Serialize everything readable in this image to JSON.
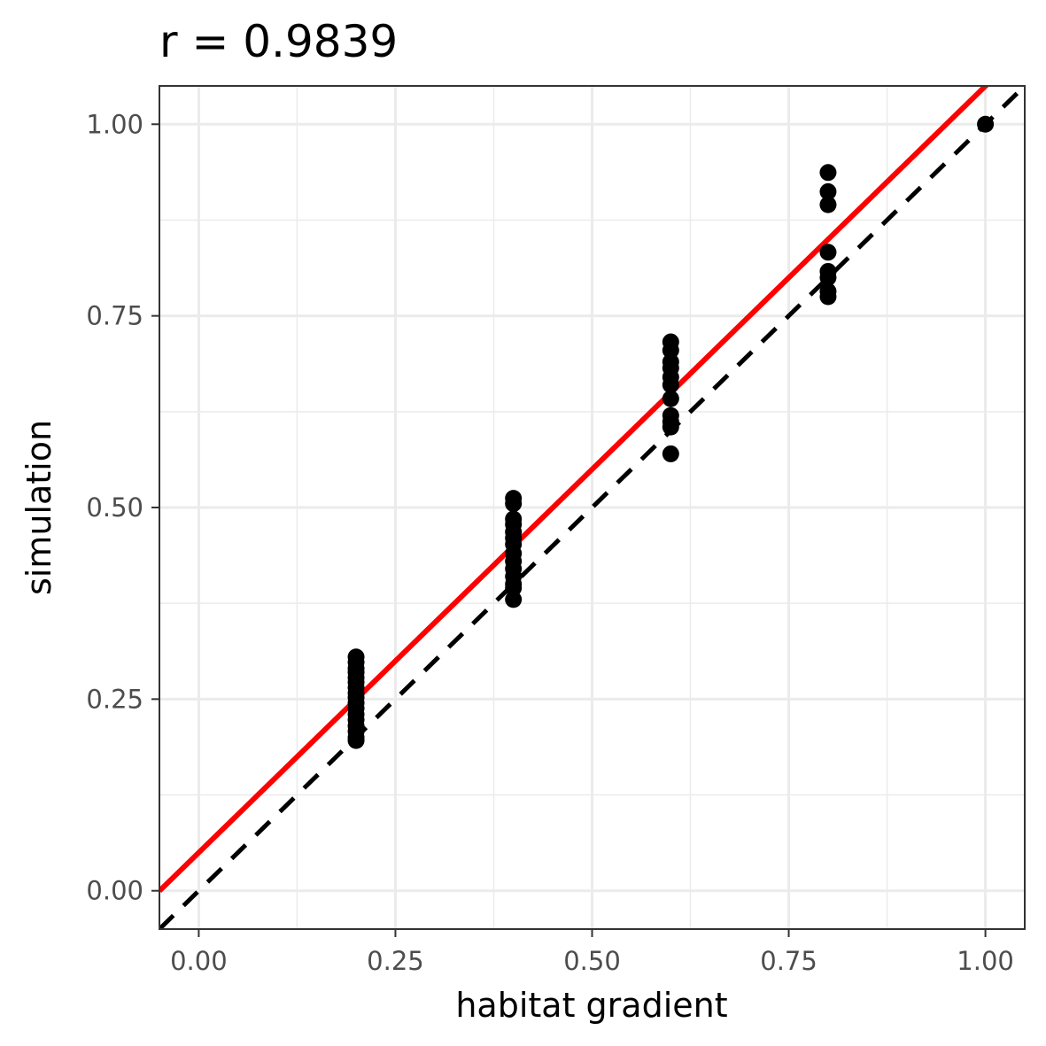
{
  "chart_data": {
    "type": "scatter",
    "title": "r = 0.9839",
    "xlabel": "habitat gradient",
    "ylabel": "simulation",
    "xlim": [
      -0.05,
      1.05
    ],
    "ylim": [
      -0.05,
      1.05
    ],
    "x_ticks": [
      0.0,
      0.25,
      0.5,
      0.75,
      1.0
    ],
    "x_tick_labels": [
      "0.00",
      "0.25",
      "0.50",
      "0.75",
      "1.00"
    ],
    "y_ticks": [
      0.0,
      0.25,
      0.5,
      0.75,
      1.0
    ],
    "y_tick_labels": [
      "0.00",
      "0.25",
      "0.50",
      "0.75",
      "1.00"
    ],
    "grid": true,
    "points": [
      {
        "x": 0.2,
        "y": 0.305
      },
      {
        "x": 0.2,
        "y": 0.298
      },
      {
        "x": 0.2,
        "y": 0.29
      },
      {
        "x": 0.2,
        "y": 0.285
      },
      {
        "x": 0.2,
        "y": 0.278
      },
      {
        "x": 0.2,
        "y": 0.272
      },
      {
        "x": 0.2,
        "y": 0.265
      },
      {
        "x": 0.2,
        "y": 0.258
      },
      {
        "x": 0.2,
        "y": 0.252
      },
      {
        "x": 0.2,
        "y": 0.245
      },
      {
        "x": 0.2,
        "y": 0.238
      },
      {
        "x": 0.2,
        "y": 0.23
      },
      {
        "x": 0.2,
        "y": 0.223
      },
      {
        "x": 0.2,
        "y": 0.215
      },
      {
        "x": 0.2,
        "y": 0.208
      },
      {
        "x": 0.2,
        "y": 0.2
      },
      {
        "x": 0.2,
        "y": 0.196
      },
      {
        "x": 0.4,
        "y": 0.512
      },
      {
        "x": 0.4,
        "y": 0.505
      },
      {
        "x": 0.4,
        "y": 0.485
      },
      {
        "x": 0.4,
        "y": 0.478
      },
      {
        "x": 0.4,
        "y": 0.468
      },
      {
        "x": 0.4,
        "y": 0.46
      },
      {
        "x": 0.4,
        "y": 0.452
      },
      {
        "x": 0.4,
        "y": 0.44
      },
      {
        "x": 0.4,
        "y": 0.43
      },
      {
        "x": 0.4,
        "y": 0.42
      },
      {
        "x": 0.4,
        "y": 0.41
      },
      {
        "x": 0.4,
        "y": 0.4
      },
      {
        "x": 0.4,
        "y": 0.395
      },
      {
        "x": 0.4,
        "y": 0.38
      },
      {
        "x": 0.6,
        "y": 0.716
      },
      {
        "x": 0.6,
        "y": 0.705
      },
      {
        "x": 0.6,
        "y": 0.69
      },
      {
        "x": 0.6,
        "y": 0.682
      },
      {
        "x": 0.6,
        "y": 0.67
      },
      {
        "x": 0.6,
        "y": 0.66
      },
      {
        "x": 0.6,
        "y": 0.642
      },
      {
        "x": 0.6,
        "y": 0.62
      },
      {
        "x": 0.6,
        "y": 0.612
      },
      {
        "x": 0.6,
        "y": 0.605
      },
      {
        "x": 0.6,
        "y": 0.57
      },
      {
        "x": 0.8,
        "y": 0.937
      },
      {
        "x": 0.8,
        "y": 0.912
      },
      {
        "x": 0.8,
        "y": 0.895
      },
      {
        "x": 0.8,
        "y": 0.833
      },
      {
        "x": 0.8,
        "y": 0.808
      },
      {
        "x": 0.8,
        "y": 0.8
      },
      {
        "x": 0.8,
        "y": 0.782
      },
      {
        "x": 0.8,
        "y": 0.775
      },
      {
        "x": 1.0,
        "y": 1.0
      }
    ],
    "fit_line": {
      "color": "#ff0000",
      "intercept": 0.0498,
      "slope": 1.0
    },
    "reference_line": {
      "color": "#000000",
      "style": "dashed",
      "intercept": 0.0,
      "slope": 1.0
    },
    "point_color": "#000000"
  }
}
